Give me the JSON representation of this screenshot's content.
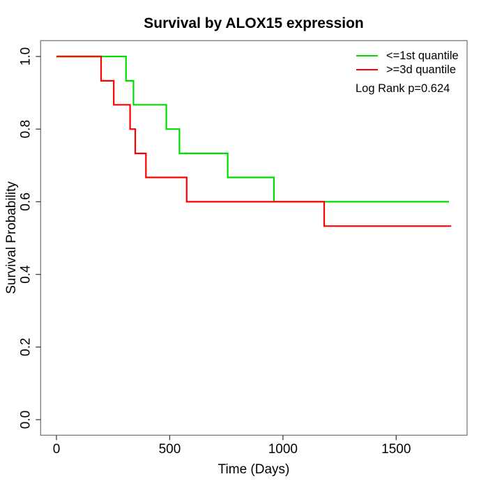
{
  "chart_data": {
    "type": "line",
    "subtype": "kaplan-meier-step",
    "title": "Survival by ALOX15 expression",
    "xlabel": "Time (Days)",
    "ylabel": "Survival Probability",
    "xlim": [
      -70,
      1813
    ],
    "ylim": [
      -0.043,
      1.043
    ],
    "x_ticks": [
      0,
      500,
      1000,
      1500
    ],
    "y_ticks": [
      0.0,
      0.2,
      0.4,
      0.6,
      0.8,
      1.0
    ],
    "grid": false,
    "legend_position": "top-right",
    "series": [
      {
        "name": "<=1st quantile",
        "color": "#00DC00",
        "start": [
          0,
          1.0
        ],
        "events": [
          [
            307,
            0.933
          ],
          [
            340,
            0.867
          ],
          [
            485,
            0.8
          ],
          [
            543,
            0.733
          ],
          [
            756,
            0.667
          ],
          [
            960,
            0.6
          ]
        ],
        "end_time": 1733
      },
      {
        "name": ">=3d quantile",
        "color": "#FF0000",
        "start": [
          0,
          1.0
        ],
        "events": [
          [
            197,
            0.933
          ],
          [
            253,
            0.867
          ],
          [
            325,
            0.8
          ],
          [
            348,
            0.733
          ],
          [
            395,
            0.667
          ],
          [
            575,
            0.6
          ],
          [
            1182,
            0.533
          ]
        ],
        "end_time": 1743
      }
    ],
    "overlap_color": "#CC2200",
    "annotation": "Log Rank p=0.624"
  },
  "legend": {
    "items": [
      {
        "label": "<=1st quantile",
        "color": "#00DC00"
      },
      {
        "label": ">=3d quantile",
        "color": "#FF0000"
      }
    ],
    "annotation": "Log Rank p=0.624"
  },
  "style_colors": {
    "box_border": "#7b7b7b",
    "tick": "#3c3c3c",
    "text": "#000000"
  }
}
